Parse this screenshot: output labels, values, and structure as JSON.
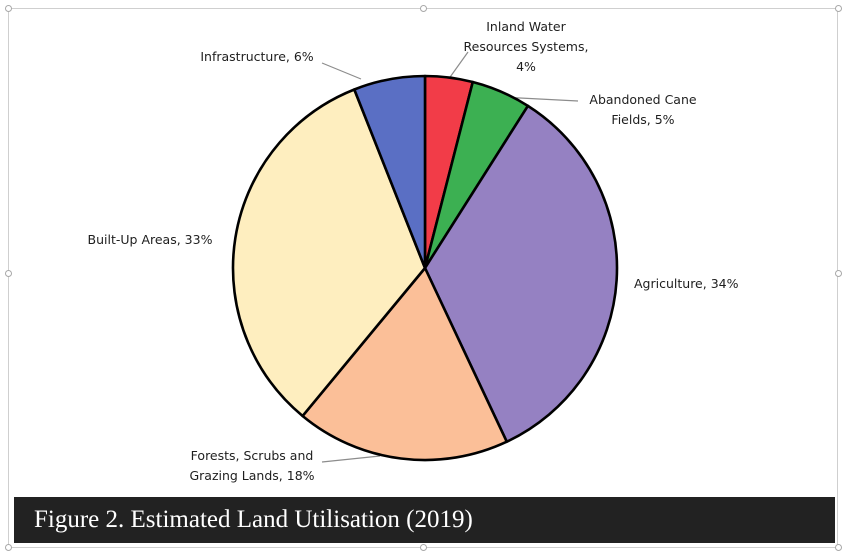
{
  "chart_data": {
    "type": "pie",
    "title": "Figure 2. Estimated Land Utilisation (2019)",
    "start": "top, clockwise",
    "slices": [
      {
        "label": "Inland Water Resources Systems",
        "value": 4,
        "color": "#f23c48"
      },
      {
        "label": "Abandoned Cane Fields",
        "value": 5,
        "color": "#3cb052"
      },
      {
        "label": "Agriculture",
        "value": 34,
        "color": "#9581c2"
      },
      {
        "label": "Forests, Scrubs and Grazing Lands",
        "value": 18,
        "color": "#fbbf98"
      },
      {
        "label": "Built-Up Areas",
        "value": 33,
        "color": "#feeebf"
      },
      {
        "label": "Infrastructure",
        "value": 6,
        "color": "#5a6fc4"
      }
    ],
    "data_labels": [
      [
        "Inland Water",
        "Resources Systems,",
        "4%"
      ],
      [
        "Abandoned  Cane",
        "Fields, 5%"
      ],
      [
        "Agriculture,  34%"
      ],
      [
        "Forests, Scrubs and",
        "Grazing Lands, 18%"
      ],
      [
        "Built-Up Areas, 33%"
      ],
      [
        "Infrastructure, 6%"
      ]
    ],
    "outline_color": "#000000",
    "leader_color": "#8c8c8c"
  }
}
